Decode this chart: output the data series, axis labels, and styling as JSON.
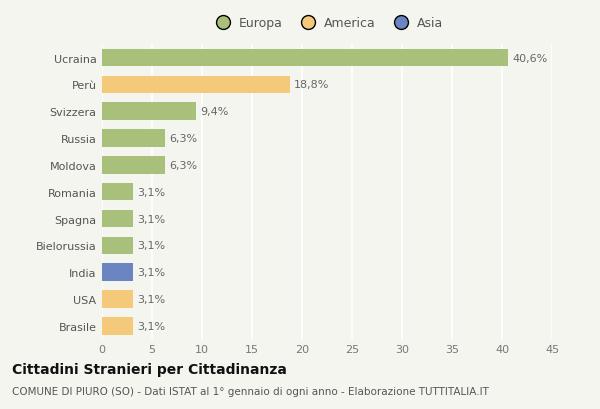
{
  "countries": [
    "Ucraina",
    "Perù",
    "Svizzera",
    "Russia",
    "Moldova",
    "Romania",
    "Spagna",
    "Bielorussia",
    "India",
    "USA",
    "Brasile"
  ],
  "values": [
    40.6,
    18.8,
    9.4,
    6.3,
    6.3,
    3.1,
    3.1,
    3.1,
    3.1,
    3.1,
    3.1
  ],
  "labels": [
    "40,6%",
    "18,8%",
    "9,4%",
    "6,3%",
    "6,3%",
    "3,1%",
    "3,1%",
    "3,1%",
    "3,1%",
    "3,1%",
    "3,1%"
  ],
  "colors": [
    "#a8c07a",
    "#f5c97a",
    "#a8c07a",
    "#a8c07a",
    "#a8c07a",
    "#a8c07a",
    "#a8c07a",
    "#a8c07a",
    "#6b85c2",
    "#f5c97a",
    "#f5c97a"
  ],
  "legend_labels": [
    "Europa",
    "America",
    "Asia"
  ],
  "legend_colors": [
    "#a8c07a",
    "#f5c97a",
    "#6b85c2"
  ],
  "title": "Cittadini Stranieri per Cittadinanza",
  "subtitle": "COMUNE DI PIURO (SO) - Dati ISTAT al 1° gennaio di ogni anno - Elaborazione TUTTITALIA.IT",
  "xlim": [
    0,
    45
  ],
  "xticks": [
    0,
    5,
    10,
    15,
    20,
    25,
    30,
    35,
    40,
    45
  ],
  "background_color": "#f5f5f0",
  "bar_height": 0.65,
  "title_fontsize": 10,
  "subtitle_fontsize": 7.5,
  "tick_fontsize": 8,
  "label_fontsize": 8
}
